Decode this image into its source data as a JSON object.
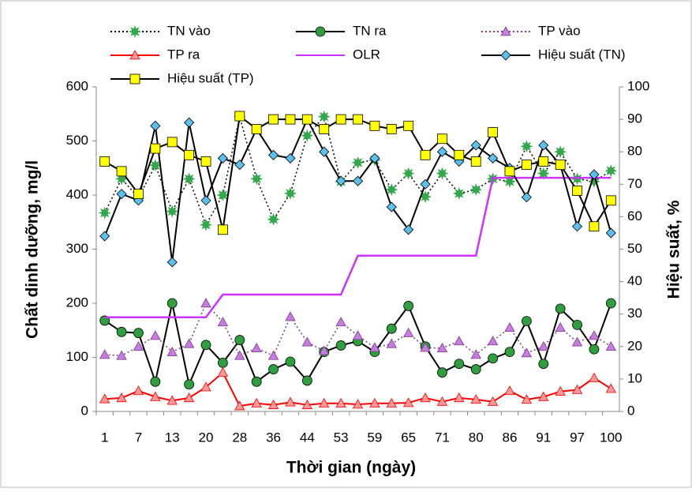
{
  "chart_data": {
    "type": "line",
    "x_label": "Thời gian (ngày)",
    "y_label": "Chất dinh dưỡng, mg/l",
    "y2_label": "Hiệu suất, %",
    "categories": [
      "1",
      null,
      "7",
      null,
      "13",
      null,
      "20",
      null,
      "28",
      null,
      "36",
      null,
      "44",
      null,
      "53",
      null,
      "59",
      null,
      "65",
      null,
      "71",
      null,
      "80",
      null,
      "86",
      null,
      "91",
      null,
      "97",
      null,
      "100"
    ],
    "ylim": [
      0,
      600
    ],
    "yticks": [
      0,
      100,
      200,
      300,
      400,
      500,
      600
    ],
    "y2lim": [
      0,
      100
    ],
    "y2ticks": [
      0,
      10,
      20,
      30,
      40,
      50,
      60,
      70,
      80,
      90,
      100
    ],
    "series": [
      {
        "name": "TN vào",
        "color": "#000000",
        "marker_color": "#33a84a",
        "marker": "star",
        "line_style": "dotted",
        "values": [
          367,
          430,
          395,
          455,
          370,
          430,
          345,
          400,
          545,
          430,
          355,
          403,
          510,
          545,
          425,
          460,
          465,
          410,
          440,
          397,
          440,
          403,
          410,
          430,
          425,
          490,
          440,
          480,
          430,
          425,
          445
        ]
      },
      {
        "name": "TN ra",
        "color": "#000000",
        "marker_color": "#2e9e3e",
        "marker": "circle",
        "line_style": "solid",
        "values": [
          168,
          147,
          145,
          55,
          200,
          50,
          123,
          90,
          132,
          55,
          78,
          92,
          57,
          110,
          122,
          130,
          110,
          153,
          195,
          120,
          72,
          88,
          78,
          98,
          110,
          167,
          88,
          190,
          160,
          115,
          200
        ]
      },
      {
        "name": "TP vào",
        "color": "#7a3c8c",
        "marker_color": "#c77ddf",
        "marker": "triangle",
        "line_style": "dotted",
        "values": [
          105,
          103,
          120,
          140,
          110,
          125,
          200,
          165,
          103,
          117,
          103,
          175,
          128,
          112,
          165,
          140,
          118,
          125,
          145,
          118,
          117,
          130,
          105,
          130,
          155,
          108,
          120,
          155,
          128,
          140,
          120
        ]
      },
      {
        "name": "TP ra",
        "color": "#ff0000",
        "marker_color": "#ff9999",
        "marker": "triangle",
        "line_style": "solid",
        "values": [
          23,
          25,
          38,
          27,
          20,
          25,
          45,
          72,
          10,
          15,
          12,
          17,
          12,
          15,
          15,
          13,
          15,
          15,
          16,
          25,
          18,
          25,
          22,
          18,
          38,
          22,
          27,
          37,
          40,
          62,
          42
        ]
      },
      {
        "name": "OLR",
        "color": "#cc33ff",
        "marker": "none",
        "line_style": "solid",
        "axis": "y2",
        "values": [
          29,
          29,
          29,
          29,
          29,
          29,
          29,
          36,
          36,
          36,
          36,
          36,
          36,
          36,
          36,
          48,
          48,
          48,
          48,
          48,
          48,
          48,
          48,
          72,
          72,
          72,
          72,
          72,
          72,
          72,
          72
        ]
      },
      {
        "name": "Hiệu suất (TN)",
        "color": "#000000",
        "marker_color": "#5bc0eb",
        "marker": "diamond",
        "line_style": "solid",
        "axis": "y2",
        "values": [
          54,
          67,
          65,
          88,
          46,
          89,
          65,
          78,
          76,
          87,
          79,
          78,
          90,
          80,
          71,
          71,
          78,
          63,
          56,
          70,
          80,
          77,
          82,
          78,
          75,
          66,
          82,
          76,
          57,
          73,
          55
        ]
      },
      {
        "name": "Hiệu suất (TP)",
        "color": "#000000",
        "marker_color": "#ffff00",
        "marker": "square",
        "line_style": "solid",
        "axis": "y2",
        "values": [
          77,
          74,
          67,
          81,
          83,
          79,
          77,
          56,
          91,
          87,
          90,
          90,
          90,
          87,
          90,
          90,
          88,
          87,
          88,
          79,
          84,
          79,
          77,
          86,
          74,
          76,
          77,
          76,
          68,
          57,
          65
        ]
      }
    ]
  }
}
